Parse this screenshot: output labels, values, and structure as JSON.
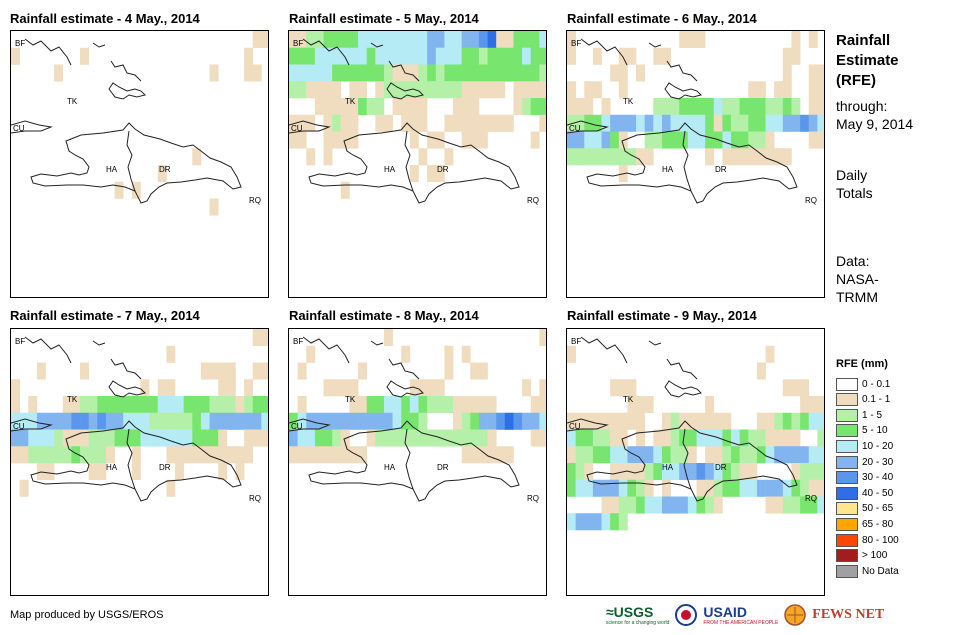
{
  "panels": [
    {
      "title": "Rainfall estimate - 4 May., 2014"
    },
    {
      "title": "Rainfall estimate - 5 May., 2014"
    },
    {
      "title": "Rainfall estimate - 6 May., 2014"
    },
    {
      "title": "Rainfall estimate - 7 May., 2014"
    },
    {
      "title": "Rainfall estimate - 8 May., 2014"
    },
    {
      "title": "Rainfall estimate - 9 May., 2014"
    }
  ],
  "map_labels": {
    "bf": "BF",
    "cu": "CU",
    "tk": "TK",
    "ha": "HA",
    "dr": "DR",
    "rq": "RQ"
  },
  "side_panel": {
    "title1": "Rainfall",
    "title2": "Estimate",
    "title3": "(RFE)",
    "through": "through:",
    "date": "May 9, 2014",
    "daily": "Daily",
    "totals": "Totals",
    "data": "Data:",
    "nasa": "NASA-",
    "trmm": "TRMM"
  },
  "legend": {
    "title": "RFE (mm)",
    "items": [
      {
        "label": "0 - 0.1",
        "color": "#ffffff"
      },
      {
        "label": "0.1 - 1",
        "color": "#f0dcbe"
      },
      {
        "label": "1 - 5",
        "color": "#b4f0a8"
      },
      {
        "label": "5 - 10",
        "color": "#78e66e"
      },
      {
        "label": "10 - 20",
        "color": "#b4ebf5"
      },
      {
        "label": "20 - 30",
        "color": "#82b4f0"
      },
      {
        "label": "30 - 40",
        "color": "#5a96eb"
      },
      {
        "label": "40 - 50",
        "color": "#2e6ee6"
      },
      {
        "label": "50 - 65",
        "color": "#ffe68c"
      },
      {
        "label": "65 - 80",
        "color": "#ffa500"
      },
      {
        "label": "80 - 100",
        "color": "#ff4600"
      },
      {
        "label": "> 100",
        "color": "#a01e1e"
      },
      {
        "label": "No Data",
        "color": "#a0a0a0"
      }
    ]
  },
  "credit": "Map produced by USGS/EROS",
  "logos": {
    "usgs": "≈USGS",
    "usgs_tag": "science for a changing world",
    "usaid": "USAID",
    "usaid_tag": "FROM THE AMERICAN PEOPLE",
    "fews": "FEWS NET"
  },
  "rain_grids": [
    "000000000000000000000000000011100000001000000000000000000100000001000000000000000001000110000000000000000000000000000000000000000000000000000000000000000000000000000000000000000000000000000000000000000000000000000000000000000000000100000000000000000000000001000000000000000000000000101000000000000000000000000000000000000001000000000000000000000000000000000000000000000000000000000000000000000000000000000000000000000000000000000000000000000000000000000000000000000000000",
    "112233334444444455445567113334333444444344444454443323333433444443333332111232333333333332221111011012222222221111101111000111113220111100011100001233111012110011011100111111110001110011110000001011001110000010001010000000000100100000000000000000000000001011000000000000000000100000000000000000000000000000000000000000000000000000000000000000000000000000000000000000000000000000000000000000000000000000000000000000000000000000",
    "100000000000011100000000001010100100110011000000000000011000000001101000000000000000010011101100100000000000000110110011111010000022233334223332232011223345554545444431322334455654554453100223334433433221000011222222221100000010111111110000000000100000000000000000000000000000000000000000000000000000000000000000000000000000000000000000000000000000000000000000000000000000000000000000000000000000000000000000000000000000000000000000",
    "000000000000000000000000000011000000000000000000100000000000000100001000000000000011110011100000000000000101100000110100101000112233333334443332221233444555566565544422222345555554554442111222333444444333100111112222232221001000111111111100000110000110001000010000101000010000000000000000100000000000000000000000000000000000000000000000000000000000000000000000000000000000000000000000000000000000000000000000000000000000000000000000",
    "000000000001000000000000000001001000000000010000101000000000010000001000000000100110000000000011110000001111000000000101010000011334434322211111000011345555555555433200012355676554544332100122222222222221000011111111111000000000001111110000000000000000000000000000000000000000000000000000000000000000000000000000000000000000000000000000000000000000000000000000000000000000000000000000000000000000000000000000000000000000000000000000",
    "000000000000000000000000000000100000000000000000000001000000000000000000000000000010000000000001110000000000000000011100000000011100000010000000000111111111111001211111100011232344433221101011233444343221111002122334455543221011232234555544321001111234455654321100001222344555432101000112334455543211000011223445554321000001122334455543200"
  ]
}
